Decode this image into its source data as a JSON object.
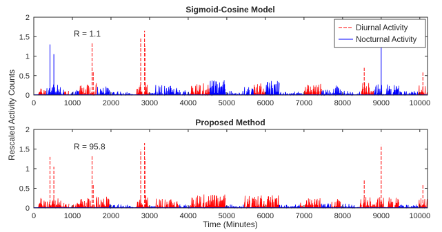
{
  "figure": {
    "ylabel": "Rescaled Activity Counts",
    "xlabel": "Time (Minutes)"
  },
  "chart_data": [
    {
      "type": "line",
      "title": "Sigmoid-Cosine Model",
      "annotation": "R = 1.1",
      "xlim": [
        0,
        10200
      ],
      "ylim": [
        0,
        2
      ],
      "xticks": [
        0,
        1000,
        2000,
        3000,
        4000,
        5000,
        6000,
        7000,
        8000,
        9000,
        10000
      ],
      "yticks": [
        0,
        0.5,
        1,
        1.5,
        2
      ],
      "xtick_labels": [
        "0",
        "1000",
        "2000",
        "3000",
        "4000",
        "5000",
        "6000",
        "7000",
        "8000",
        "9000",
        "10000"
      ],
      "ytick_labels": [
        "0",
        "0.5",
        "1",
        "1.5",
        "2"
      ],
      "legend": {
        "position": "top-right"
      },
      "series": [
        {
          "name": "Diurnal Activity",
          "color": "#ff0000",
          "style": "dashed"
        },
        {
          "name": "Nocturnal Activity",
          "color": "#0000ff",
          "style": "solid"
        }
      ],
      "peaks": [
        {
          "x": 420,
          "y": 1.3,
          "series": 1
        },
        {
          "x": 520,
          "y": 1.05,
          "series": 1
        },
        {
          "x": 1510,
          "y": 1.35,
          "series": 0
        },
        {
          "x": 1540,
          "y": 0.6,
          "series": 0
        },
        {
          "x": 2770,
          "y": 1.48,
          "series": 0
        },
        {
          "x": 2870,
          "y": 1.65,
          "series": 0
        },
        {
          "x": 2880,
          "y": 1.25,
          "series": 0
        },
        {
          "x": 8560,
          "y": 0.7,
          "series": 0
        },
        {
          "x": 9000,
          "y": 1.6,
          "series": 1
        },
        {
          "x": 10080,
          "y": 0.58,
          "series": 0
        }
      ],
      "segments": [
        {
          "start": 100,
          "end": 330,
          "series": 0,
          "level": 0.08
        },
        {
          "start": 330,
          "end": 780,
          "series": 1,
          "level": 0.13
        },
        {
          "start": 780,
          "end": 900,
          "series": 0,
          "level": 0.05
        },
        {
          "start": 960,
          "end": 1180,
          "series": 1,
          "level": 0.06
        },
        {
          "start": 1180,
          "end": 1620,
          "series": 0,
          "level": 0.14
        },
        {
          "start": 1620,
          "end": 1950,
          "series": 1,
          "level": 0.1
        },
        {
          "start": 1950,
          "end": 2200,
          "series": 1,
          "level": 0.05
        },
        {
          "start": 2200,
          "end": 2650,
          "series": 1,
          "level": 0.04
        },
        {
          "start": 2650,
          "end": 3000,
          "series": 0,
          "level": 0.15
        },
        {
          "start": 3000,
          "end": 3150,
          "series": 1,
          "level": 0.05
        },
        {
          "start": 3150,
          "end": 3750,
          "series": 1,
          "level": 0.12
        },
        {
          "start": 3750,
          "end": 4050,
          "series": 1,
          "level": 0.07
        },
        {
          "start": 4050,
          "end": 4550,
          "series": 0,
          "level": 0.14
        },
        {
          "start": 4550,
          "end": 4950,
          "series": 1,
          "level": 0.18
        },
        {
          "start": 4950,
          "end": 5450,
          "series": 1,
          "level": 0.05
        },
        {
          "start": 5450,
          "end": 5700,
          "series": 1,
          "level": 0.1
        },
        {
          "start": 5700,
          "end": 6000,
          "series": 0,
          "level": 0.14
        },
        {
          "start": 6000,
          "end": 6350,
          "series": 1,
          "level": 0.17
        },
        {
          "start": 6350,
          "end": 6900,
          "series": 1,
          "level": 0.04
        },
        {
          "start": 6900,
          "end": 7000,
          "series": 1,
          "level": 0.1
        },
        {
          "start": 7000,
          "end": 7450,
          "series": 0,
          "level": 0.13
        },
        {
          "start": 7450,
          "end": 7700,
          "series": 1,
          "level": 0.06
        },
        {
          "start": 7700,
          "end": 7950,
          "series": 1,
          "level": 0.15
        },
        {
          "start": 7950,
          "end": 8450,
          "series": 1,
          "level": 0.05
        },
        {
          "start": 8450,
          "end": 8800,
          "series": 0,
          "level": 0.15
        },
        {
          "start": 8800,
          "end": 9450,
          "series": 1,
          "level": 0.13
        },
        {
          "start": 9450,
          "end": 9950,
          "series": 1,
          "level": 0.05
        },
        {
          "start": 9950,
          "end": 10180,
          "series": 0,
          "level": 0.12
        }
      ]
    },
    {
      "type": "line",
      "title": "Proposed Method",
      "annotation": "R = 95.8",
      "xlim": [
        0,
        10200
      ],
      "ylim": [
        0,
        2
      ],
      "xticks": [
        0,
        1000,
        2000,
        3000,
        4000,
        5000,
        6000,
        7000,
        8000,
        9000,
        10000
      ],
      "yticks": [
        0,
        0.5,
        1,
        1.5,
        2
      ],
      "xtick_labels": [
        "0",
        "1000",
        "2000",
        "3000",
        "4000",
        "5000",
        "6000",
        "7000",
        "8000",
        "9000",
        "10000"
      ],
      "ytick_labels": [
        "0",
        "0.5",
        "1",
        "1.5",
        "2"
      ],
      "series": [
        {
          "name": "Diurnal Activity",
          "color": "#ff0000",
          "style": "dashed"
        },
        {
          "name": "Nocturnal Activity",
          "color": "#0000ff",
          "style": "solid"
        }
      ],
      "peaks": [
        {
          "x": 420,
          "y": 1.3,
          "series": 0
        },
        {
          "x": 520,
          "y": 1.05,
          "series": 0
        },
        {
          "x": 1510,
          "y": 1.35,
          "series": 0
        },
        {
          "x": 1540,
          "y": 0.6,
          "series": 0
        },
        {
          "x": 2770,
          "y": 1.48,
          "series": 0
        },
        {
          "x": 2870,
          "y": 1.65,
          "series": 0
        },
        {
          "x": 2880,
          "y": 1.25,
          "series": 0
        },
        {
          "x": 8560,
          "y": 0.7,
          "series": 0
        },
        {
          "x": 9000,
          "y": 1.6,
          "series": 0
        },
        {
          "x": 10080,
          "y": 0.58,
          "series": 0
        }
      ],
      "segments": [
        {
          "start": 100,
          "end": 780,
          "series": 0,
          "level": 0.12
        },
        {
          "start": 780,
          "end": 900,
          "series": 0,
          "level": 0.05
        },
        {
          "start": 960,
          "end": 1180,
          "series": 0,
          "level": 0.06
        },
        {
          "start": 1180,
          "end": 1950,
          "series": 0,
          "level": 0.13
        },
        {
          "start": 1950,
          "end": 2200,
          "series": 1,
          "level": 0.05
        },
        {
          "start": 2200,
          "end": 2650,
          "series": 1,
          "level": 0.04
        },
        {
          "start": 2650,
          "end": 3000,
          "series": 0,
          "level": 0.15
        },
        {
          "start": 3000,
          "end": 3150,
          "series": 1,
          "level": 0.04
        },
        {
          "start": 3150,
          "end": 3750,
          "series": 0,
          "level": 0.11
        },
        {
          "start": 3750,
          "end": 4050,
          "series": 1,
          "level": 0.05
        },
        {
          "start": 4050,
          "end": 4950,
          "series": 0,
          "level": 0.16
        },
        {
          "start": 4950,
          "end": 5450,
          "series": 1,
          "level": 0.04
        },
        {
          "start": 5450,
          "end": 6350,
          "series": 0,
          "level": 0.15
        },
        {
          "start": 6350,
          "end": 6900,
          "series": 1,
          "level": 0.04
        },
        {
          "start": 6900,
          "end": 7450,
          "series": 0,
          "level": 0.12
        },
        {
          "start": 7450,
          "end": 7700,
          "series": 1,
          "level": 0.05
        },
        {
          "start": 7700,
          "end": 7950,
          "series": 0,
          "level": 0.14
        },
        {
          "start": 7950,
          "end": 8450,
          "series": 1,
          "level": 0.05
        },
        {
          "start": 8450,
          "end": 9450,
          "series": 0,
          "level": 0.13
        },
        {
          "start": 9450,
          "end": 9950,
          "series": 1,
          "level": 0.04
        },
        {
          "start": 9950,
          "end": 10180,
          "series": 0,
          "level": 0.12
        }
      ]
    }
  ]
}
